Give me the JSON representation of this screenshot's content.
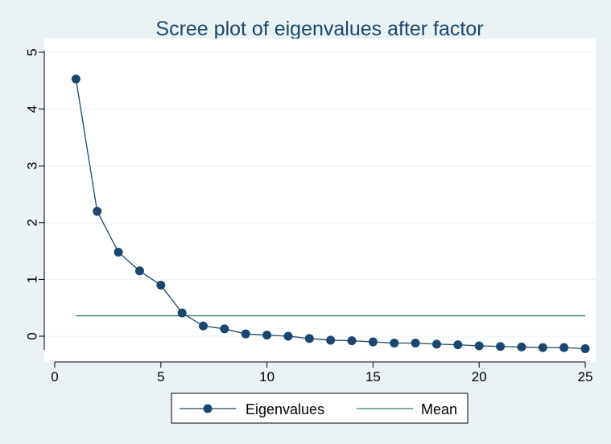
{
  "chart_data": {
    "type": "line",
    "title": "Scree plot of eigenvalues after factor",
    "xlabel": "",
    "ylabel": "",
    "xlim": [
      0,
      25
    ],
    "ylim": [
      -0.3,
      5
    ],
    "x_ticks": [
      0,
      5,
      10,
      15,
      20,
      25
    ],
    "y_ticks": [
      0,
      1,
      2,
      3,
      4,
      5
    ],
    "grid": true,
    "legend_position": "bottom",
    "series": [
      {
        "name": "Eigenvalues",
        "style": "line-with-markers",
        "color": "#1a476f",
        "x": [
          1,
          2,
          3,
          4,
          5,
          6,
          7,
          8,
          9,
          10,
          11,
          12,
          13,
          14,
          15,
          16,
          17,
          18,
          19,
          20,
          21,
          22,
          23,
          24,
          25
        ],
        "values": [
          4.53,
          2.2,
          1.48,
          1.15,
          0.9,
          0.41,
          0.18,
          0.13,
          0.04,
          0.02,
          0.0,
          -0.04,
          -0.07,
          -0.08,
          -0.1,
          -0.12,
          -0.12,
          -0.14,
          -0.15,
          -0.17,
          -0.18,
          -0.19,
          -0.2,
          -0.2,
          -0.22
        ]
      },
      {
        "name": "Mean",
        "style": "line",
        "color": "#2e8068",
        "x": [
          1,
          25
        ],
        "values": [
          0.36,
          0.36
        ]
      }
    ]
  },
  "colors": {
    "background": "#eaf2f3",
    "plot_background": "#ffffff",
    "grid": "#eaf2f3",
    "title": "#1a476f"
  }
}
